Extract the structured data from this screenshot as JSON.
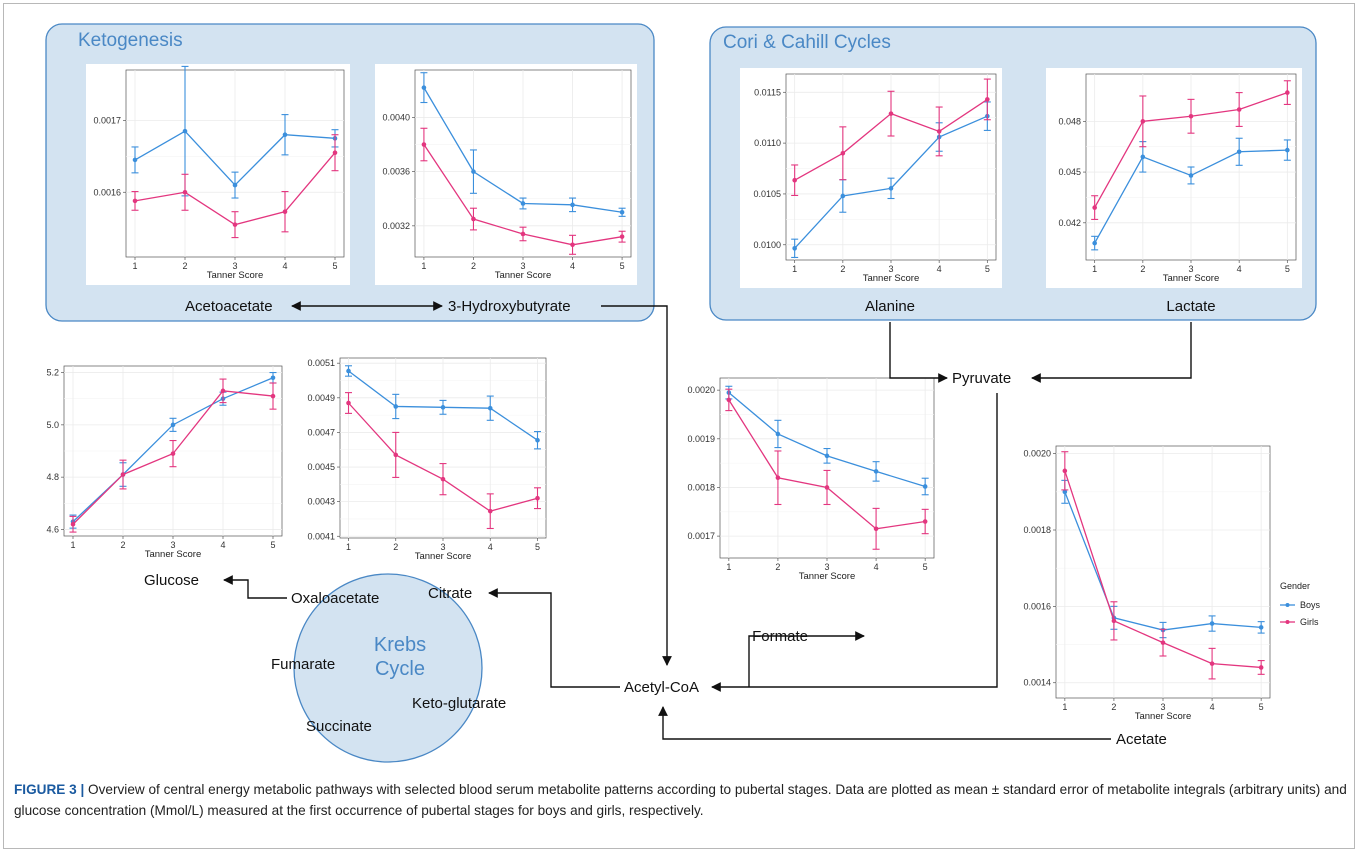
{
  "colors": {
    "boys": "#3b8fdc",
    "girls": "#e3367f",
    "panel_fill": "#d3e3f1",
    "panel_stroke": "#4a88c5",
    "title_blue": "#4a88c5"
  },
  "panels": {
    "ketogenesis_title": "Ketogenesis",
    "cori_title": "Cori & Cahill Cycles",
    "krebs_line1": "Krebs",
    "krebs_line2": "Cycle"
  },
  "metabolites": {
    "acetoacetate": "Acetoacetate",
    "hydroxybutyrate": "3-Hydroxybutyrate",
    "alanine": "Alanine",
    "lactate": "Lactate",
    "pyruvate": "Pyruvate",
    "glucose": "Glucose",
    "oxaloacetate": "Oxaloacetate",
    "citrate": "Citrate",
    "fumarate": "Fumarate",
    "succinate": "Succinate",
    "keto_glutarate": "Keto-glutarate",
    "acetyl_coa": "Acetyl-CoA",
    "formate": "Formate",
    "acetate": "Acetate"
  },
  "legend": {
    "title": "Gender",
    "boys": "Boys",
    "girls": "Girls"
  },
  "caption": {
    "label": "FIGURE 3 |",
    "text": " Overview of central energy metabolic pathways with selected blood serum metabolite patterns according to pubertal stages. Data are plotted as mean ± standard error of metabolite integrals (arbitrary units) and glucose concentration (Mmol/L) measured at the first occurrence of pubertal stages for boys and girls, respectively."
  },
  "chart_data": [
    {
      "id": "acetoacetate",
      "type": "line",
      "x": [
        1,
        2,
        3,
        4,
        5
      ],
      "xlabel": "Tanner Score",
      "ylabel": "",
      "ylim": [
        0.00151,
        0.00177
      ],
      "yticks": [
        0.0016,
        0.0017
      ],
      "yticklabels": [
        "0.0016",
        "0.0017"
      ],
      "xticklabels": [
        "1",
        "2",
        "3",
        "4",
        "5"
      ],
      "series": [
        {
          "name": "Boys",
          "values": [
            0.001645,
            0.001685,
            0.00161,
            0.00168,
            0.001675
          ],
          "errors": [
            1.8e-05,
            9e-05,
            1.8e-05,
            2.8e-05,
            1.2e-05
          ]
        },
        {
          "name": "Girls",
          "values": [
            0.001588,
            0.0016,
            0.001555,
            0.001573,
            0.001655
          ],
          "errors": [
            1.3e-05,
            2.5e-05,
            1.8e-05,
            2.8e-05,
            2.5e-05
          ]
        }
      ]
    },
    {
      "id": "hydroxybutyrate",
      "type": "line",
      "x": [
        1,
        2,
        3,
        4,
        5
      ],
      "xlabel": "Tanner Score",
      "ylabel": "",
      "ylim": [
        0.00297,
        0.00435
      ],
      "yticks": [
        0.0032,
        0.0036,
        0.004
      ],
      "yticklabels": [
        "0.0032",
        "0.0036",
        "0.0040"
      ],
      "xticklabels": [
        "1",
        "2",
        "3",
        "4",
        "5"
      ],
      "series": [
        {
          "name": "Boys",
          "values": [
            0.00422,
            0.0036,
            0.003365,
            0.003355,
            0.0033
          ],
          "errors": [
            0.00011,
            0.00016,
            4e-05,
            5e-05,
            3e-05
          ]
        },
        {
          "name": "Girls",
          "values": [
            0.0038,
            0.00325,
            0.00314,
            0.00306,
            0.00312
          ],
          "errors": [
            0.00012,
            8e-05,
            5e-05,
            7e-05,
            4e-05
          ]
        }
      ]
    },
    {
      "id": "alanine",
      "type": "line",
      "x": [
        1,
        2,
        3,
        4,
        5
      ],
      "xlabel": "Tanner Score",
      "ylabel": "",
      "ylim": [
        0.00985,
        0.01168
      ],
      "yticks": [
        0.01,
        0.0105,
        0.011,
        0.0115
      ],
      "yticklabels": [
        "0.0100",
        "0.0105",
        "0.0110",
        "0.0115"
      ],
      "xticklabels": [
        "1",
        "2",
        "3",
        "4",
        "5"
      ],
      "series": [
        {
          "name": "Boys",
          "values": [
            0.009965,
            0.01048,
            0.010555,
            0.01106,
            0.011265
          ],
          "errors": [
            9e-05,
            0.00016,
            0.0001,
            0.00014,
            0.00014
          ]
        },
        {
          "name": "Girls",
          "values": [
            0.010635,
            0.0109,
            0.01129,
            0.011115,
            0.01143
          ],
          "errors": [
            0.00015,
            0.00026,
            0.00022,
            0.00024,
            0.0002
          ]
        }
      ]
    },
    {
      "id": "lactate",
      "type": "line",
      "x": [
        1,
        2,
        3,
        4,
        5
      ],
      "xlabel": "Tanner Score",
      "ylabel": "",
      "ylim": [
        0.0398,
        0.0508
      ],
      "yticks": [
        0.042,
        0.045,
        0.048
      ],
      "yticklabels": [
        "0.042",
        "0.045",
        "0.048"
      ],
      "xticklabels": [
        "1",
        "2",
        "3",
        "4",
        "5"
      ],
      "series": [
        {
          "name": "Boys",
          "values": [
            0.0408,
            0.0459,
            0.0448,
            0.0462,
            0.0463
          ],
          "errors": [
            0.0004,
            0.0009,
            0.0005,
            0.0008,
            0.0006
          ]
        },
        {
          "name": "Girls",
          "values": [
            0.0429,
            0.048,
            0.0483,
            0.0487,
            0.0497
          ],
          "errors": [
            0.0007,
            0.0015,
            0.001,
            0.001,
            0.0007
          ]
        }
      ]
    },
    {
      "id": "glucose",
      "type": "line",
      "x": [
        1,
        2,
        3,
        4,
        5
      ],
      "xlabel": "Tanner Score",
      "ylabel": "",
      "ylim": [
        4.575,
        5.225
      ],
      "yticks": [
        4.6,
        4.8,
        5.0,
        5.2
      ],
      "yticklabels": [
        "4.6",
        "4.8",
        "5.0",
        "5.2"
      ],
      "xticklabels": [
        "1",
        "2",
        "3",
        "4",
        "5"
      ],
      "series": [
        {
          "name": "Boys",
          "values": [
            4.63,
            4.81,
            5.0,
            5.1,
            5.18
          ],
          "errors": [
            0.025,
            0.045,
            0.025,
            0.025,
            0.02
          ]
        },
        {
          "name": "Girls",
          "values": [
            4.62,
            4.81,
            4.89,
            5.13,
            5.11
          ],
          "errors": [
            0.03,
            0.055,
            0.05,
            0.045,
            0.05
          ]
        }
      ]
    },
    {
      "id": "citrate",
      "type": "line",
      "x": [
        1,
        2,
        3,
        4,
        5
      ],
      "xlabel": "Tanner Score",
      "ylabel": "",
      "ylim": [
        0.00409,
        0.00513
      ],
      "yticks": [
        0.0041,
        0.0043,
        0.0045,
        0.0047,
        0.0049,
        0.0051
      ],
      "yticklabels": [
        "0.0041",
        "0.0043",
        "0.0045",
        "0.0047",
        "0.0049",
        "0.0051"
      ],
      "xticklabels": [
        "1",
        "2",
        "3",
        "4",
        "5"
      ],
      "series": [
        {
          "name": "Boys",
          "values": [
            0.005055,
            0.00485,
            0.004845,
            0.00484,
            0.004655
          ],
          "errors": [
            3e-05,
            7e-05,
            4e-05,
            7e-05,
            5e-05
          ]
        },
        {
          "name": "Girls",
          "values": [
            0.00487,
            0.00457,
            0.00443,
            0.004245,
            0.00432
          ],
          "errors": [
            6e-05,
            0.00013,
            9e-05,
            0.0001,
            6e-05
          ]
        }
      ]
    },
    {
      "id": "formate",
      "type": "line",
      "x": [
        1,
        2,
        3,
        4,
        5
      ],
      "xlabel": "Tanner Score",
      "ylabel": "",
      "ylim": [
        0.001655,
        0.002025
      ],
      "yticks": [
        0.0017,
        0.0018,
        0.0019,
        0.002
      ],
      "yticklabels": [
        "0.0017",
        "0.0018",
        "0.0019",
        "0.0020"
      ],
      "xticklabels": [
        "1",
        "2",
        "3",
        "4",
        "5"
      ],
      "series": [
        {
          "name": "Boys",
          "values": [
            0.001995,
            0.00191,
            0.001865,
            0.001833,
            0.001802
          ],
          "errors": [
            1.3e-05,
            2.8e-05,
            1.5e-05,
            2e-05,
            1.7e-05
          ]
        },
        {
          "name": "Girls",
          "values": [
            0.00198,
            0.00182,
            0.0018,
            0.001715,
            0.00173
          ],
          "errors": [
            2.2e-05,
            5.5e-05,
            3.5e-05,
            4.2e-05,
            2.5e-05
          ]
        }
      ]
    },
    {
      "id": "acetate",
      "type": "line",
      "x": [
        1,
        2,
        3,
        4,
        5
      ],
      "xlabel": "Tanner Score",
      "ylabel": "",
      "ylim": [
        0.00136,
        0.00202
      ],
      "yticks": [
        0.0014,
        0.0016,
        0.0018,
        0.002
      ],
      "yticklabels": [
        "0.0014",
        "0.0016",
        "0.0018",
        "0.0020"
      ],
      "xticklabels": [
        "1",
        "2",
        "3",
        "4",
        "5"
      ],
      "series": [
        {
          "name": "Boys",
          "values": [
            0.0019,
            0.00157,
            0.001538,
            0.001555,
            0.001545
          ],
          "errors": [
            3e-05,
            3e-05,
            2e-05,
            2e-05,
            1.5e-05
          ]
        },
        {
          "name": "Girls",
          "values": [
            0.001955,
            0.001562,
            0.001505,
            0.00145,
            0.00144
          ],
          "errors": [
            5e-05,
            5e-05,
            3.5e-05,
            4e-05,
            1.8e-05
          ]
        }
      ]
    }
  ]
}
